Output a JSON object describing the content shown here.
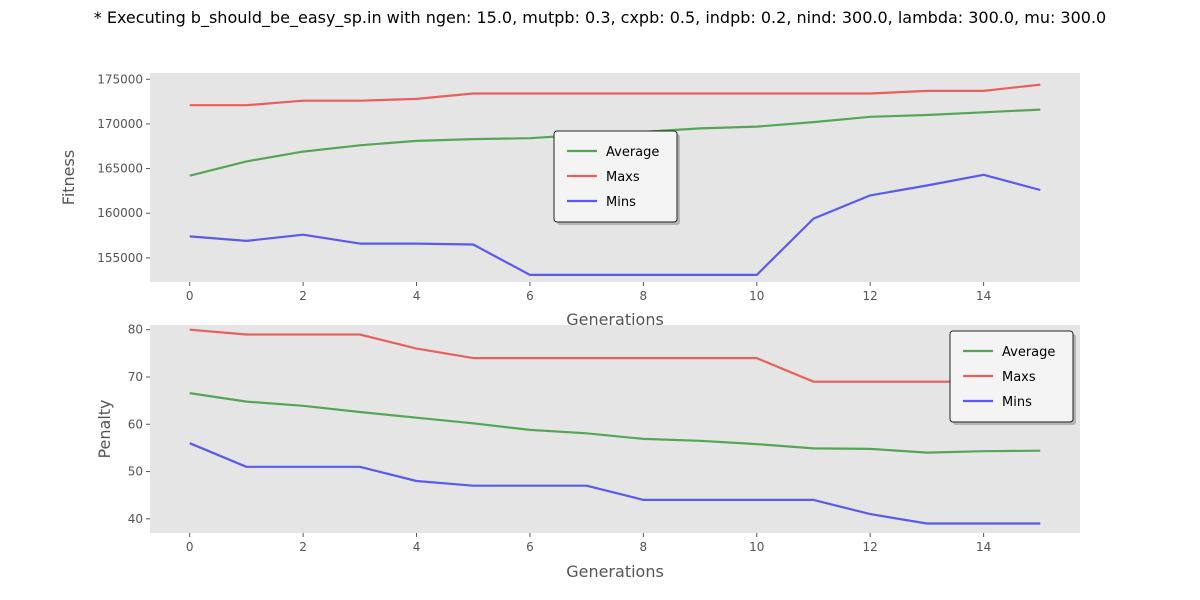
{
  "figure": {
    "title": "* Executing b_should_be_easy_sp.in with ngen: 15.0, mutpb: 0.3, cxpb: 0.5, indpb: 0.2, nind: 300.0, lambda: 300.0, mu: 300.0"
  },
  "chart_data": [
    {
      "type": "line",
      "title": "",
      "xlabel": "Generations",
      "ylabel": "Fitness",
      "xlim": [
        -0.7,
        15.7
      ],
      "ylim": [
        152300,
        175700
      ],
      "xticks": [
        0,
        2,
        4,
        6,
        8,
        10,
        12,
        14
      ],
      "yticks": [
        155000,
        160000,
        165000,
        170000,
        175000
      ],
      "grid": false,
      "legend_position": "center",
      "x": [
        0,
        1,
        2,
        3,
        4,
        5,
        6,
        7,
        8,
        9,
        10,
        11,
        12,
        13,
        14,
        15
      ],
      "series": [
        {
          "name": "Average",
          "color": "#55a557",
          "values": [
            164200,
            165800,
            166900,
            167600,
            168100,
            168300,
            168400,
            168800,
            169100,
            169500,
            169700,
            170200,
            170800,
            171000,
            171300,
            171600
          ]
        },
        {
          "name": "Maxs",
          "color": "#e8605d",
          "values": [
            172100,
            172100,
            172600,
            172600,
            172800,
            173400,
            173400,
            173400,
            173400,
            173400,
            173400,
            173400,
            173400,
            173700,
            173700,
            174400
          ]
        },
        {
          "name": "Mins",
          "color": "#5a5aee",
          "values": [
            157400,
            156900,
            157600,
            156600,
            156600,
            156500,
            153100,
            153100,
            153100,
            153100,
            153100,
            159400,
            162000,
            163100,
            164300,
            162600
          ]
        }
      ]
    },
    {
      "type": "line",
      "title": "",
      "xlabel": "Generations",
      "ylabel": "Penalty",
      "xlim": [
        -0.7,
        15.7
      ],
      "ylim": [
        37,
        81
      ],
      "xticks": [
        0,
        2,
        4,
        6,
        8,
        10,
        12,
        14
      ],
      "yticks": [
        40,
        50,
        60,
        70,
        80
      ],
      "grid": false,
      "legend_position": "top-right",
      "x": [
        0,
        1,
        2,
        3,
        4,
        5,
        6,
        7,
        8,
        9,
        10,
        11,
        12,
        13,
        14,
        15
      ],
      "series": [
        {
          "name": "Average",
          "color": "#55a557",
          "values": [
            66.6,
            64.8,
            63.9,
            62.6,
            61.4,
            60.2,
            58.8,
            58.1,
            56.9,
            56.5,
            55.8,
            54.9,
            54.8,
            54.0,
            54.3,
            54.4
          ]
        },
        {
          "name": "Maxs",
          "color": "#e8605d",
          "values": [
            80,
            79,
            79,
            79,
            76,
            74,
            74,
            74,
            74,
            74,
            74,
            69,
            69,
            69,
            69,
            69
          ]
        },
        {
          "name": "Mins",
          "color": "#5a5aee",
          "values": [
            56,
            51,
            51,
            51,
            48,
            47,
            47,
            47,
            44,
            44,
            44,
            44,
            41,
            39,
            39,
            39
          ]
        }
      ]
    }
  ]
}
